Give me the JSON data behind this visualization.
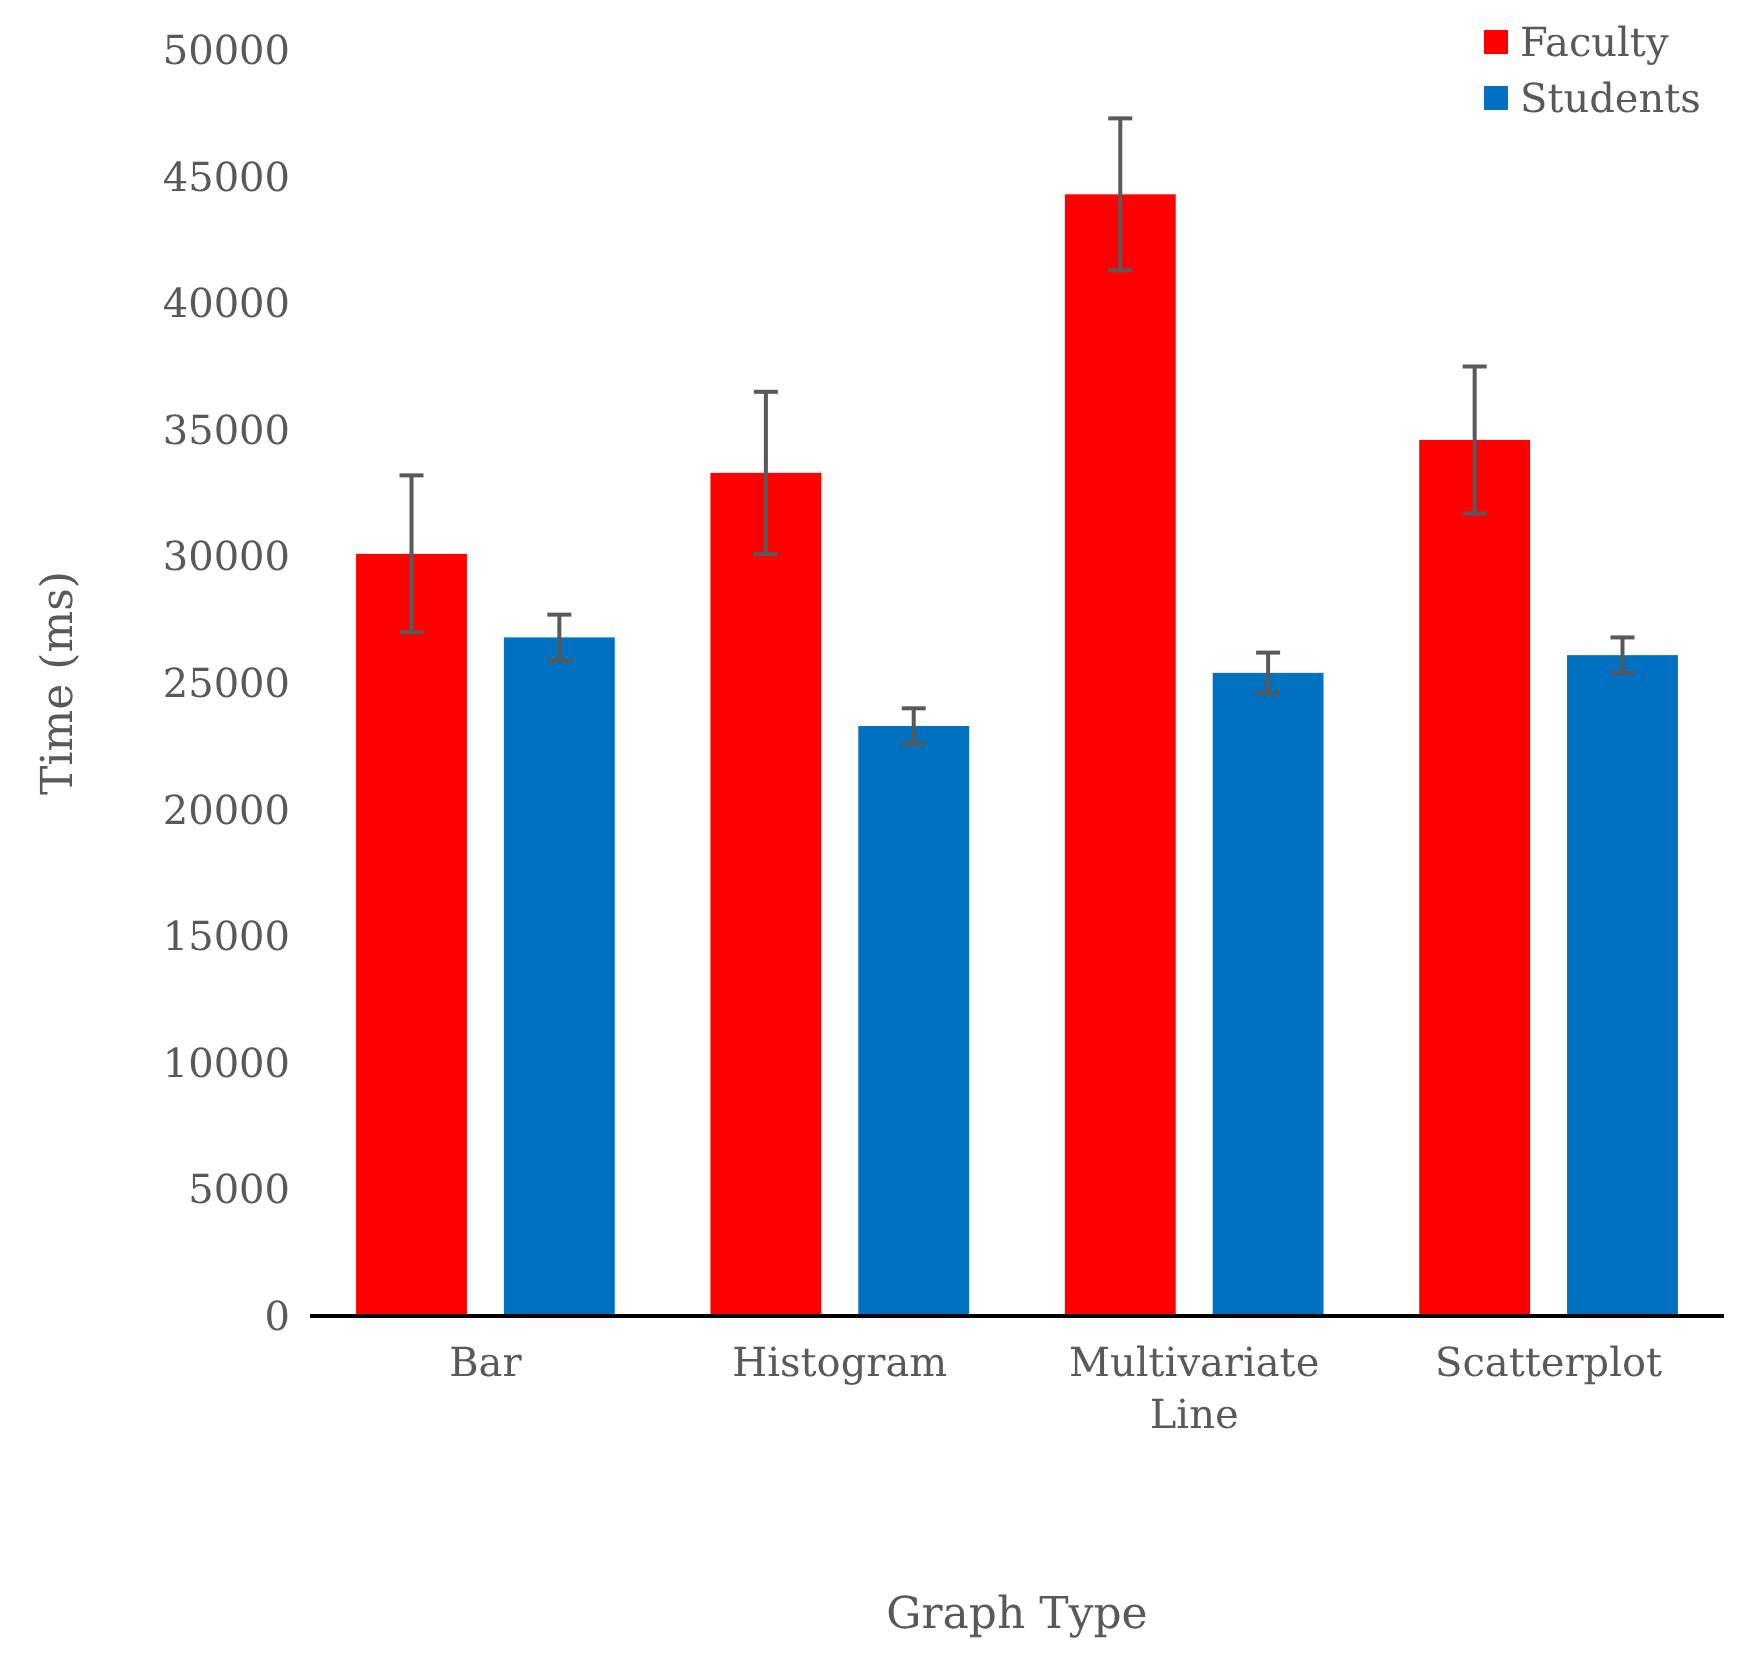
{
  "chart_data": {
    "type": "bar",
    "xlabel": "Graph Type",
    "ylabel": "Time (ms)",
    "categories": [
      "Bar",
      "Histogram",
      "Multivariate Line",
      "Scatterplot"
    ],
    "series": [
      {
        "name": "Faculty",
        "color": "#ff0000",
        "values": [
          30100,
          33300,
          44300,
          34600
        ],
        "errors": [
          3100,
          3200,
          3000,
          2900
        ]
      },
      {
        "name": "Students",
        "color": "#0070c0",
        "values": [
          26800,
          23300,
          25400,
          26100
        ],
        "errors": [
          900,
          700,
          800,
          700
        ]
      }
    ],
    "ylim": [
      0,
      50000
    ],
    "yticks": [
      0,
      5000,
      10000,
      15000,
      20000,
      25000,
      30000,
      35000,
      40000,
      45000,
      50000
    ],
    "legend": "top right"
  }
}
